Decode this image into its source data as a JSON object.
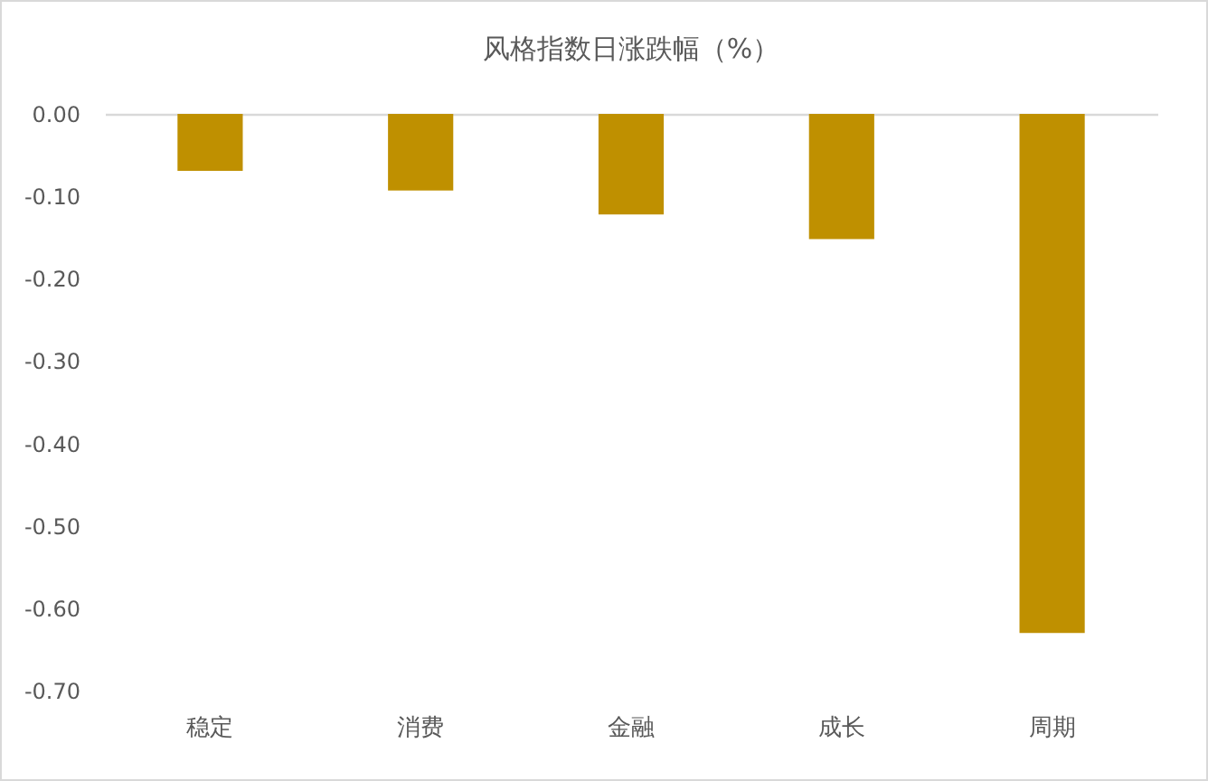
{
  "chart_data": {
    "type": "bar",
    "title": "风格指数日涨跌幅（%）",
    "categories": [
      "稳定",
      "消费",
      "金融",
      "成长",
      "周期"
    ],
    "values": [
      -0.069,
      -0.093,
      -0.122,
      -0.152,
      -0.63
    ],
    "color": "#bf9000",
    "ylim": [
      -0.7,
      0
    ],
    "yticks": [
      {
        "value": 0,
        "label": "0.00"
      },
      {
        "value": -0.1,
        "label": "-0.10"
      },
      {
        "value": -0.2,
        "label": "-0.20"
      },
      {
        "value": -0.3,
        "label": "-0.30"
      },
      {
        "value": -0.4,
        "label": "-0.40"
      },
      {
        "value": -0.5,
        "label": "-0.50"
      },
      {
        "value": -0.6,
        "label": "-0.60"
      },
      {
        "value": -0.7,
        "label": "-0.70"
      }
    ]
  }
}
